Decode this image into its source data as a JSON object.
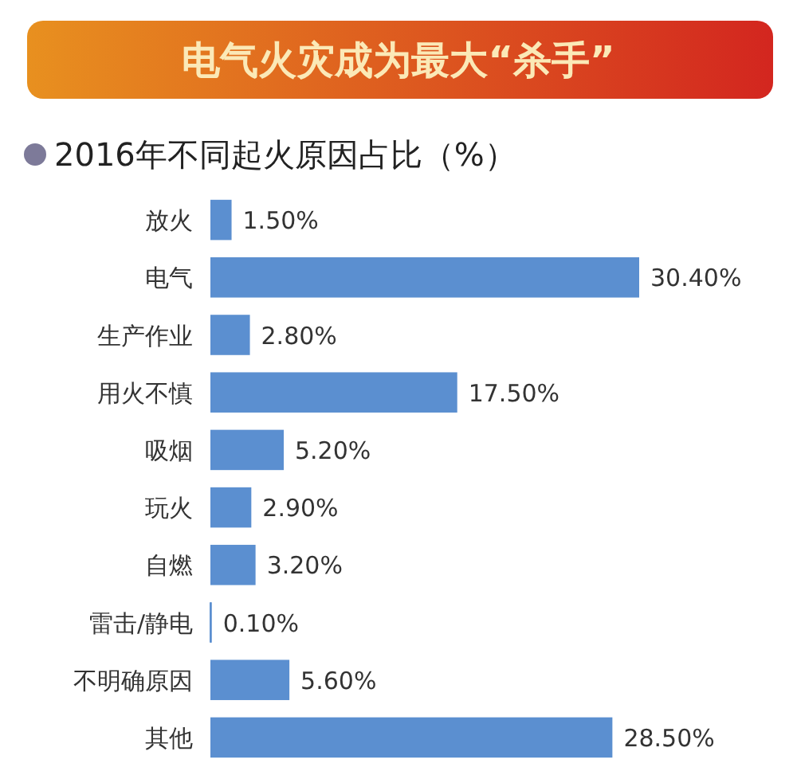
{
  "chart_data": {
    "type": "bar",
    "orientation": "horizontal",
    "title": "电气火灾成为最大“杀手”",
    "subtitle": "2016年不同起火原因占比（%）",
    "categories": [
      "放火",
      "电气",
      "生产作业",
      "用火不慎",
      "吸烟",
      "玩火",
      "自燃",
      "雷击/静电",
      "不明确原因",
      "其他"
    ],
    "values": [
      1.5,
      30.4,
      2.8,
      17.5,
      5.2,
      2.9,
      3.2,
      0.1,
      5.6,
      28.5
    ],
    "value_labels": [
      "1.50%",
      "30.40%",
      "2.80%",
      "17.50%",
      "5.20%",
      "2.90%",
      "3.20%",
      "0.10%",
      "5.60%",
      "28.50%"
    ],
    "color": "#5b8fd0"
  }
}
